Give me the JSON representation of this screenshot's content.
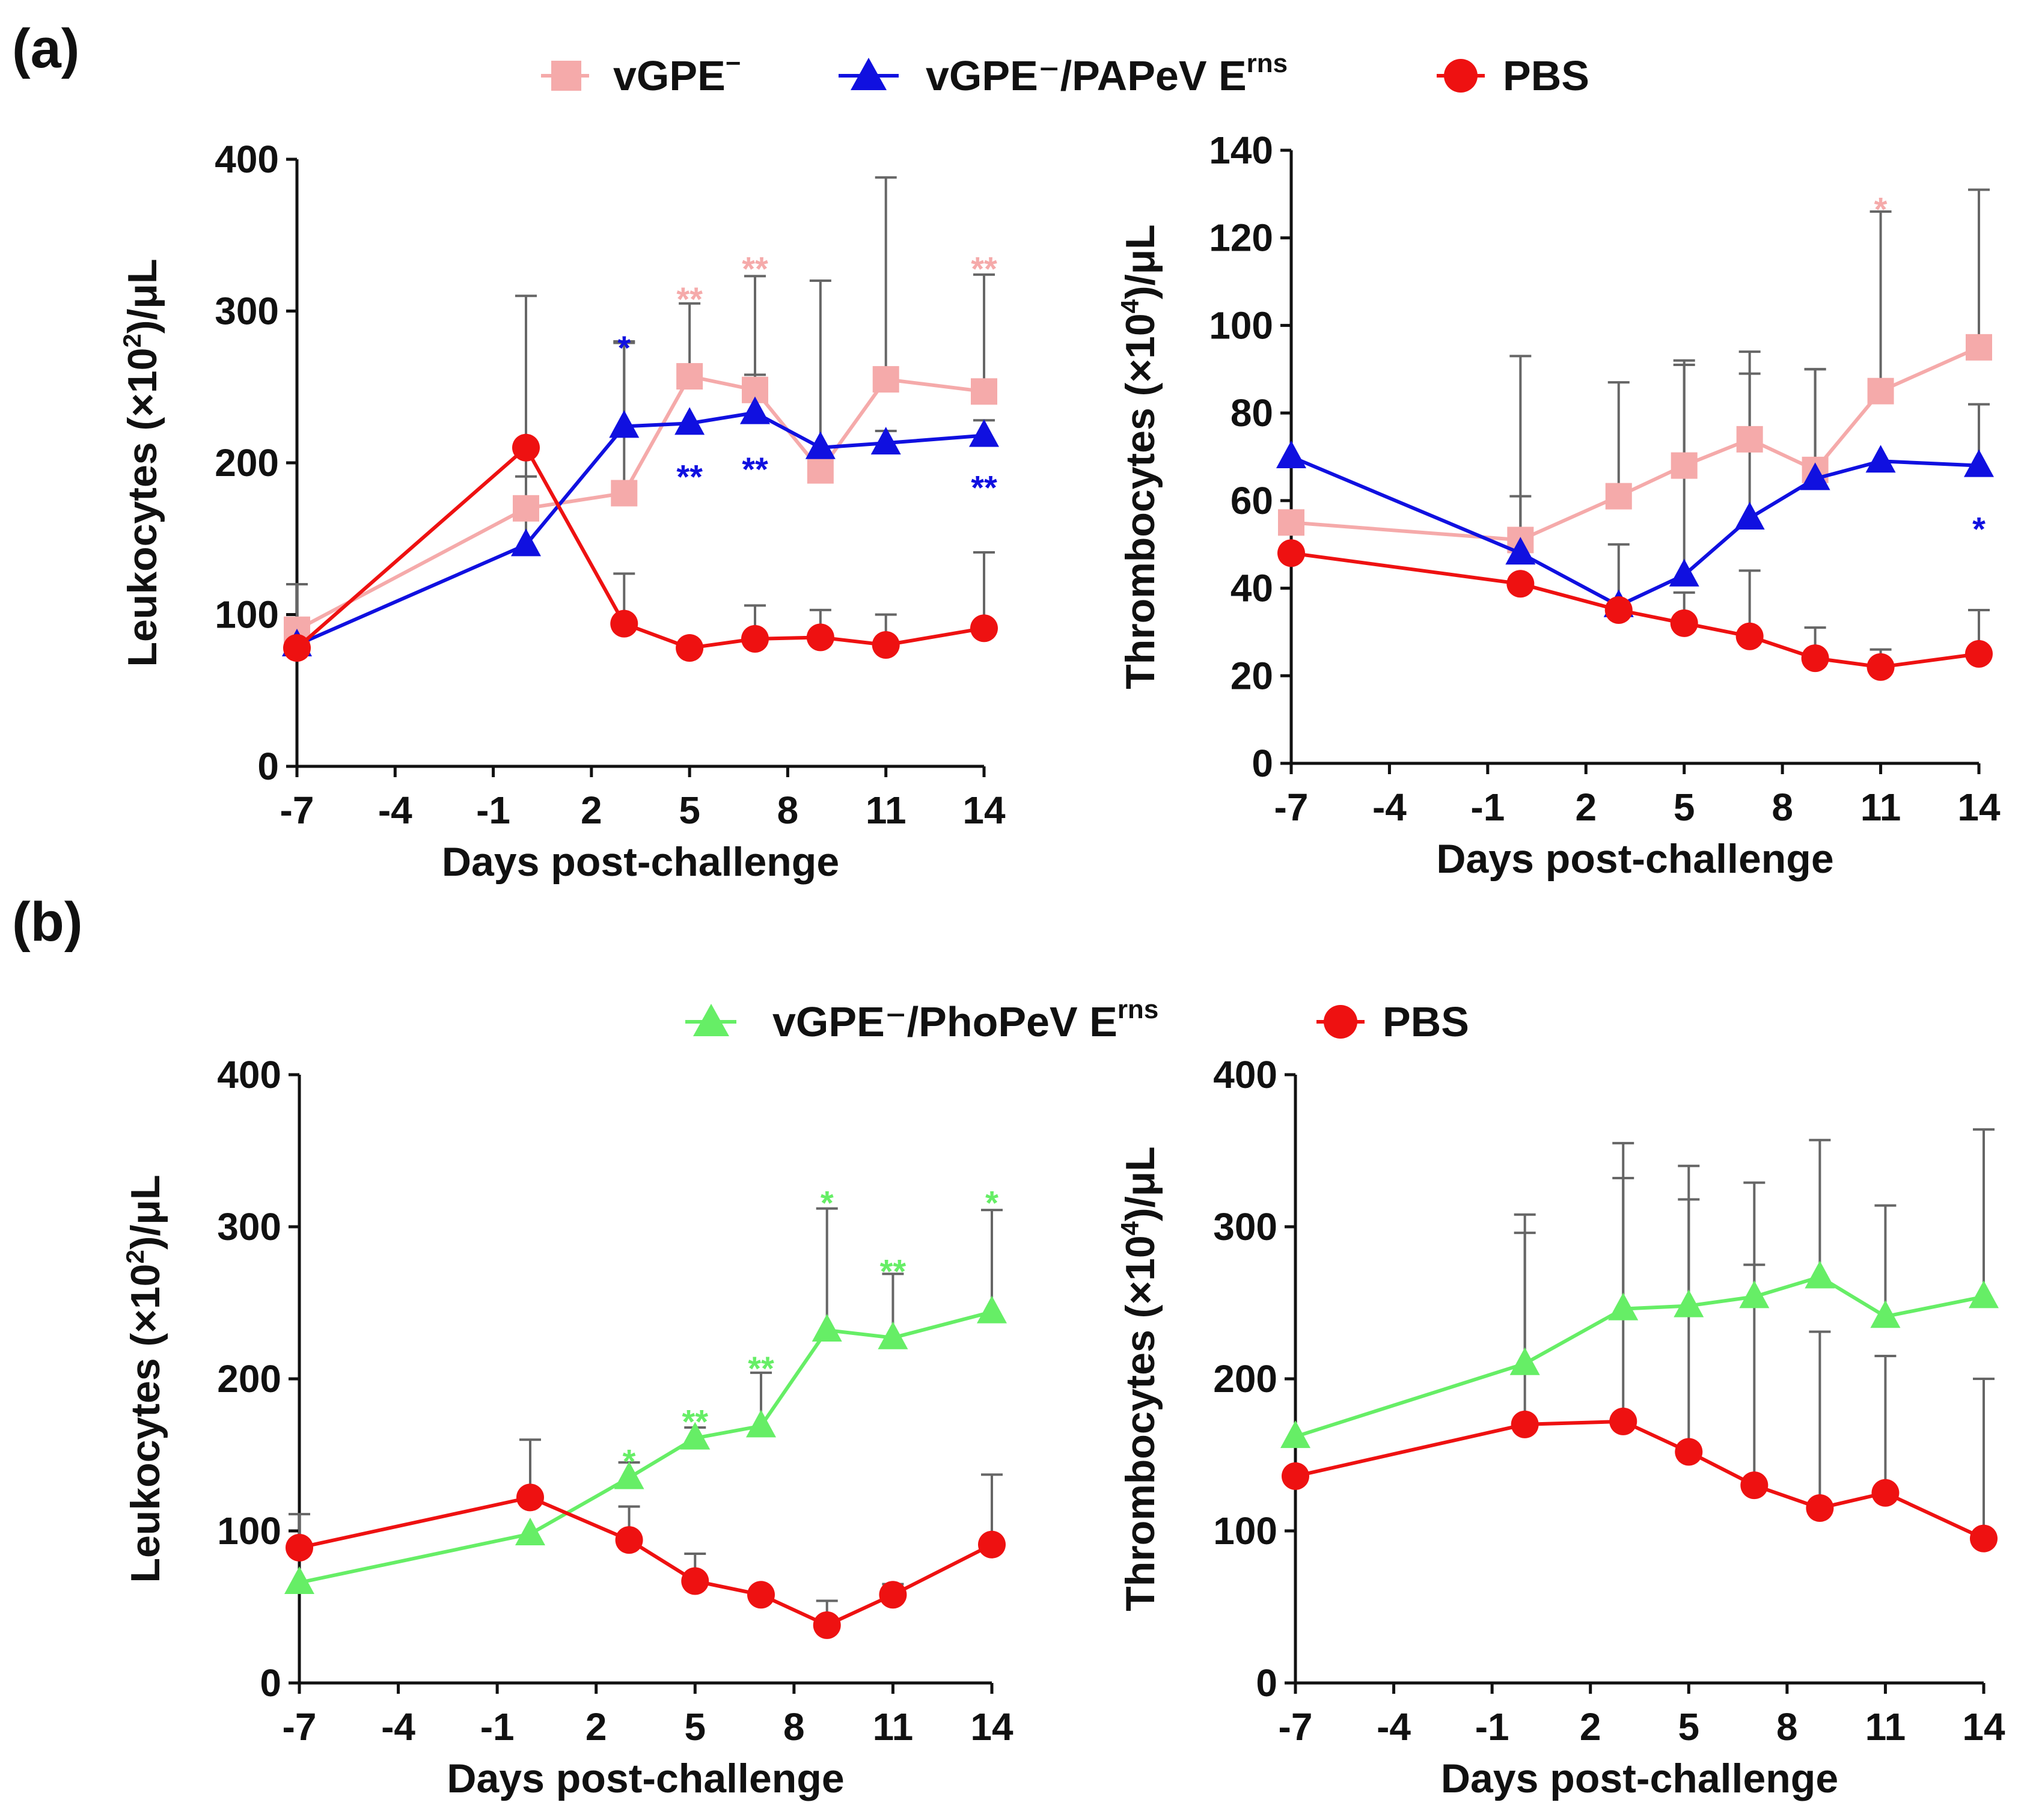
{
  "panels": [
    {
      "label": "(a)",
      "legend": [
        {
          "key": "vgpe",
          "name": "vGPE",
          "superscript": "−"
        },
        {
          "key": "papev",
          "name": "vGPE⁻/PAPeV E",
          "superscript": "rns"
        },
        {
          "key": "pbs",
          "name": "PBS",
          "superscript": ""
        }
      ]
    },
    {
      "label": "(b)",
      "legend": [
        {
          "key": "phopev",
          "name": "vGPE⁻/PhoPeV E",
          "superscript": "rns"
        },
        {
          "key": "pbs",
          "name": "PBS",
          "superscript": ""
        }
      ]
    }
  ],
  "series_styles": {
    "vgpe": {
      "color": "#f5aaaa",
      "marker": "square"
    },
    "papev": {
      "color": "#1010e0",
      "marker": "triangle"
    },
    "phopev": {
      "color": "#66ee66",
      "marker": "triangle"
    },
    "pbs": {
      "color": "#ee1111",
      "marker": "circle"
    }
  },
  "chart_data": [
    {
      "id": "a-left",
      "type": "line",
      "xlabel": "Days post-challenge",
      "ylabel_main": "Leukocytes (×10",
      "ylabel_sup": "2",
      "ylabel_tail": ")/μL",
      "x_ticks": [
        -7,
        -4,
        -1,
        2,
        5,
        8,
        11,
        14
      ],
      "x_tick_labels": [
        "-7",
        "-4",
        "-1",
        "2",
        "5",
        "8",
        "11",
        "14"
      ],
      "xlim": [
        -7,
        14
      ],
      "y_ticks": [
        0,
        100,
        200,
        300,
        400
      ],
      "y_tick_labels": [
        "0",
        "100",
        "200",
        "300",
        "400"
      ],
      "ylim": [
        0,
        400
      ],
      "series": [
        {
          "key": "vgpe",
          "name": "vGPE⁻",
          "x": [
            -7,
            0,
            3,
            5,
            7,
            9,
            11,
            14
          ],
          "y": [
            90,
            170,
            180,
            257,
            248,
            195,
            255,
            247
          ],
          "error": [
            30,
            140,
            100,
            48,
            75,
            125,
            133,
            77
          ]
        },
        {
          "key": "papev",
          "name": "vGPE⁻/PAPeV Erns",
          "x": [
            -7,
            0,
            3,
            5,
            7,
            9,
            11,
            14
          ],
          "y": [
            80,
            146,
            224,
            226,
            233,
            210,
            213,
            218
          ],
          "error": [
            0,
            45,
            55,
            0,
            25,
            0,
            8,
            10
          ]
        },
        {
          "key": "pbs",
          "name": "PBS",
          "x": [
            -7,
            0,
            3,
            5,
            7,
            9,
            11,
            14
          ],
          "y": [
            78,
            210,
            94,
            78,
            84,
            85,
            80,
            91
          ],
          "error": [
            0,
            0,
            33,
            0,
            22,
            18,
            20,
            50
          ]
        }
      ],
      "annotations": [
        {
          "key": "papev",
          "x": 3,
          "y": 280,
          "text": "*"
        },
        {
          "key": "vgpe",
          "x": 5,
          "y": 312,
          "text": "**"
        },
        {
          "key": "papev",
          "x": 5,
          "y": 195,
          "text": "**"
        },
        {
          "key": "vgpe",
          "x": 7,
          "y": 332,
          "text": "**"
        },
        {
          "key": "papev",
          "x": 7,
          "y": 200,
          "text": "**"
        },
        {
          "key": "vgpe",
          "x": 14,
          "y": 332,
          "text": "**"
        },
        {
          "key": "papev",
          "x": 14,
          "y": 188,
          "text": "**"
        }
      ]
    },
    {
      "id": "a-right",
      "type": "line",
      "xlabel": "Days post-challenge",
      "ylabel_main": "Thrombocytes (×10",
      "ylabel_sup": "4",
      "ylabel_tail": ")/μL",
      "x_ticks": [
        -7,
        -4,
        -1,
        2,
        5,
        8,
        11,
        14
      ],
      "x_tick_labels": [
        "-7",
        "-4",
        "-1",
        "2",
        "5",
        "8",
        "11",
        "14"
      ],
      "xlim": [
        -7,
        14
      ],
      "y_ticks": [
        0,
        20,
        40,
        60,
        80,
        100,
        120,
        140
      ],
      "y_tick_labels": [
        "0",
        "20",
        "40",
        "60",
        "80",
        "100",
        "120",
        "140"
      ],
      "ylim": [
        0,
        140
      ],
      "series": [
        {
          "key": "vgpe",
          "name": "vGPE⁻",
          "x": [
            -7,
            0,
            3,
            5,
            7,
            9,
            11,
            14
          ],
          "y": [
            55,
            51,
            61,
            68,
            74,
            67,
            85,
            95
          ],
          "error": [
            0,
            42,
            26,
            24,
            20,
            23,
            41,
            36
          ]
        },
        {
          "key": "papev",
          "name": "vGPE⁻/PAPeV Erns",
          "x": [
            -7,
            0,
            3,
            5,
            7,
            9,
            11,
            14
          ],
          "y": [
            70,
            48,
            36,
            43,
            56,
            65,
            69,
            68
          ],
          "error": [
            0,
            13,
            14,
            48,
            33,
            25,
            0,
            14
          ]
        },
        {
          "key": "pbs",
          "name": "PBS",
          "x": [
            -7,
            0,
            3,
            5,
            7,
            9,
            11,
            14
          ],
          "y": [
            48,
            41,
            35,
            32,
            29,
            24,
            22,
            25
          ],
          "error": [
            0,
            0,
            0,
            7,
            15,
            7,
            4,
            10
          ]
        }
      ],
      "annotations": [
        {
          "key": "vgpe",
          "x": 11,
          "y": 128,
          "text": "*"
        },
        {
          "key": "papev",
          "x": 14,
          "y": 55,
          "text": "*"
        }
      ]
    },
    {
      "id": "b-left",
      "type": "line",
      "xlabel": "Days post-challenge",
      "ylabel_main": "Leukocytes (×10",
      "ylabel_sup": "2",
      "ylabel_tail": ")/μL",
      "x_ticks": [
        -7,
        -4,
        -1,
        2,
        5,
        8,
        11,
        14
      ],
      "x_tick_labels": [
        "-7",
        "-4",
        "-1",
        "2",
        "5",
        "8",
        "11",
        "14"
      ],
      "xlim": [
        -7,
        14
      ],
      "y_ticks": [
        0,
        100,
        200,
        300,
        400
      ],
      "y_tick_labels": [
        "0",
        "100",
        "200",
        "300",
        "400"
      ],
      "ylim": [
        0,
        400
      ],
      "series": [
        {
          "key": "phopev",
          "name": "vGPE⁻/PhoPeV Erns",
          "x": [
            -7,
            0,
            3,
            5,
            7,
            9,
            11,
            14
          ],
          "y": [
            66,
            98,
            135,
            161,
            169,
            232,
            227,
            244
          ],
          "error": [
            0,
            0,
            10,
            7,
            35,
            80,
            42,
            67
          ]
        },
        {
          "key": "pbs",
          "name": "PBS",
          "x": [
            -7,
            0,
            3,
            5,
            7,
            9,
            11,
            14
          ],
          "y": [
            89,
            122,
            94,
            67,
            58,
            38,
            58,
            91
          ],
          "error": [
            22,
            38,
            22,
            18,
            0,
            16,
            7,
            46
          ]
        }
      ],
      "annotations": [
        {
          "key": "phopev",
          "x": 3,
          "y": 150,
          "text": "*"
        },
        {
          "key": "phopev",
          "x": 5,
          "y": 176,
          "text": "**"
        },
        {
          "key": "phopev",
          "x": 7,
          "y": 211,
          "text": "**"
        },
        {
          "key": "phopev",
          "x": 9,
          "y": 320,
          "text": "*"
        },
        {
          "key": "phopev",
          "x": 11,
          "y": 275,
          "text": "**"
        },
        {
          "key": "phopev",
          "x": 14,
          "y": 320,
          "text": "*"
        }
      ]
    },
    {
      "id": "b-right",
      "type": "line",
      "xlabel": "Days post-challenge",
      "ylabel_main": "Thrombocytes (×10",
      "ylabel_sup": "4",
      "ylabel_tail": ")/μL",
      "x_ticks": [
        -7,
        -4,
        -1,
        2,
        5,
        8,
        11,
        14
      ],
      "x_tick_labels": [
        "-7",
        "-4",
        "-1",
        "2",
        "5",
        "8",
        "11",
        "14"
      ],
      "xlim": [
        -7,
        14
      ],
      "y_ticks": [
        0,
        100,
        200,
        300,
        400
      ],
      "y_tick_labels": [
        "0",
        "100",
        "200",
        "300",
        "400"
      ],
      "ylim": [
        0,
        400
      ],
      "series": [
        {
          "key": "phopev",
          "name": "vGPE⁻/PhoPeV Erns",
          "x": [
            -7,
            0,
            3,
            5,
            7,
            9,
            11,
            14
          ],
          "y": [
            162,
            210,
            246,
            248,
            254,
            267,
            241,
            254
          ],
          "error": [
            0,
            98,
            109,
            92,
            75,
            90,
            73,
            110
          ]
        },
        {
          "key": "pbs",
          "name": "PBS",
          "x": [
            -7,
            0,
            3,
            5,
            7,
            9,
            11,
            14
          ],
          "y": [
            136,
            170,
            172,
            152,
            130,
            115,
            125,
            95
          ],
          "error": [
            0,
            126,
            160,
            166,
            145,
            116,
            90,
            105
          ]
        }
      ],
      "annotations": []
    }
  ]
}
